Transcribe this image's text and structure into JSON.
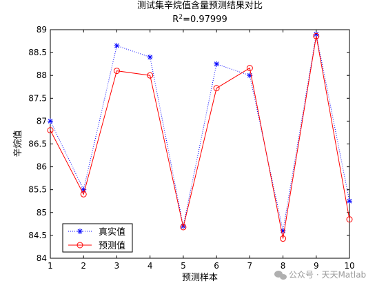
{
  "chart_data": {
    "type": "line",
    "title": "测试集辛烷值含量预测结果对比",
    "subtitle_prefix": "R",
    "subtitle_sup": "2",
    "subtitle_value": "=0.97999",
    "xlabel": "预测样本",
    "ylabel": "辛烷值",
    "x": [
      1,
      2,
      3,
      4,
      5,
      6,
      7,
      8,
      9,
      10
    ],
    "xlim": [
      1,
      10
    ],
    "ylim": [
      84,
      89
    ],
    "xticks": [
      "1",
      "2",
      "3",
      "4",
      "5",
      "6",
      "7",
      "8",
      "9",
      "10"
    ],
    "yticks": [
      "84",
      "84.5",
      "85",
      "85.5",
      "86",
      "86.5",
      "87",
      "87.5",
      "88",
      "88.5",
      "89"
    ],
    "grid": false,
    "legend_position": "bottom-left",
    "series": [
      {
        "name": "真实值",
        "values": [
          87.0,
          85.5,
          88.65,
          88.4,
          84.7,
          88.25,
          88.0,
          84.6,
          88.9,
          85.25
        ],
        "color": "#0000ff",
        "line_style": "dotted",
        "marker": "asterisk"
      },
      {
        "name": "预测值",
        "values": [
          86.8,
          85.4,
          88.1,
          88.0,
          84.68,
          87.72,
          88.16,
          84.43,
          88.86,
          84.85
        ],
        "color": "#ff0000",
        "line_style": "solid",
        "marker": "circle"
      }
    ]
  },
  "watermark": {
    "icon": "wechat-icon",
    "text": "公众号 · 天天Matlab"
  }
}
